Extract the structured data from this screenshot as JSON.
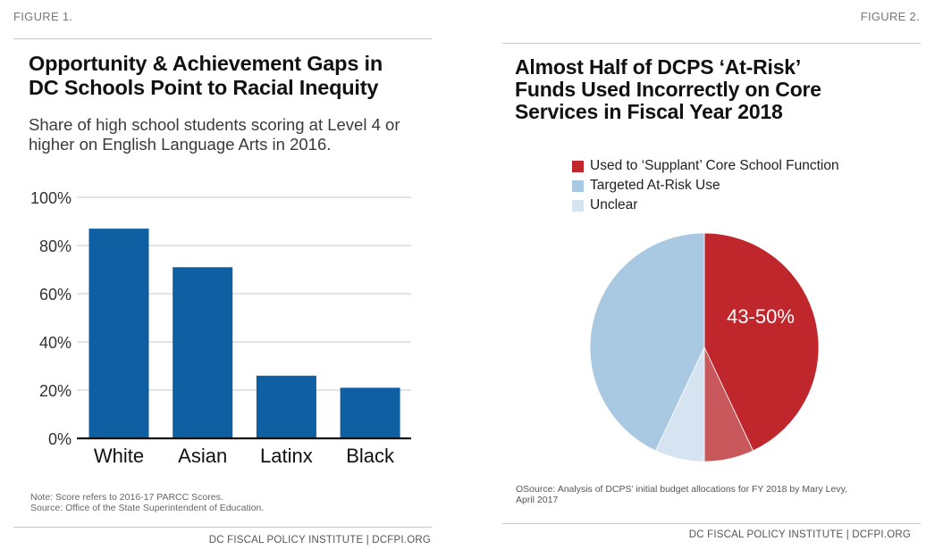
{
  "figure1": {
    "label": "FIGURE 1.",
    "title_line1": "Opportunity & Achievement Gaps in",
    "title_line2": "DC Schools Point to Racial Inequity",
    "subtitle_line1": "Share of high school students scoring at Level 4 or",
    "subtitle_line2": "higher on English Language Arts in 2016.",
    "note_line1": "Note: Score refers to 2016-17 PARCC Scores.",
    "note_line2": "Source: Office of the State Superintendent of Education.",
    "footer": "DC FISCAL POLICY INSTITUTE | DCFPI.ORG",
    "bar_color": "#0f5fa3"
  },
  "figure2": {
    "label": "FIGURE 2.",
    "title_line1": "Almost Half of DCPS ‘At-Risk’",
    "title_line2": "Funds Used Incorrectly on Core",
    "title_line3": "Services in Fiscal Year 2018",
    "source_line1": "OSource: Analysis of DCPS’ initial budget allocations for FY 2018 by Mary Levy,",
    "source_line2": "April 2017",
    "footer": "DC FISCAL POLICY INSTITUTE | DCFPI.ORG"
  },
  "chart_data": [
    {
      "type": "bar",
      "title": "Opportunity & Achievement Gaps in DC Schools Point to Racial Inequity",
      "subtitle": "Share of high school students scoring at Level 4 or higher on English Language Arts in 2016.",
      "categories": [
        "White",
        "Asian",
        "Latinx",
        "Black"
      ],
      "values": [
        87,
        71,
        26,
        21
      ],
      "xlabel": "",
      "ylabel": "",
      "ylim": [
        0,
        100
      ],
      "yticks": [
        0,
        20,
        40,
        60,
        80,
        100
      ],
      "ytick_labels": [
        "0%",
        "20%",
        "40%",
        "60%",
        "80%",
        "100%"
      ],
      "grid": true,
      "color": "#0f5fa3"
    },
    {
      "type": "pie",
      "title": "Almost Half of DCPS ‘At-Risk’ Funds Used Incorrectly on Core Services in Fiscal Year 2018",
      "legend": [
        {
          "label": "Used to ‘Supplant’ Core School Function",
          "color": "#c0272d"
        },
        {
          "label": "Targeted At-Risk Use",
          "color": "#a9c8e2"
        },
        {
          "label": "Unclear",
          "color": "#d6e4f1"
        }
      ],
      "legend_position": "top",
      "slices": [
        {
          "name": "Used to ‘Supplant’ Core School Function (low estimate)",
          "value": 43,
          "color": "#c0272d"
        },
        {
          "name": "Used to ‘Supplant’ Core School Function (range to high estimate)",
          "value": 7,
          "color": "#c9585d"
        },
        {
          "name": "Unclear",
          "value": 7,
          "color": "#d6e4f1"
        },
        {
          "name": "Targeted At-Risk Use",
          "value": 43,
          "color": "#a9c8e2"
        }
      ],
      "annotation": "43-50%"
    }
  ]
}
